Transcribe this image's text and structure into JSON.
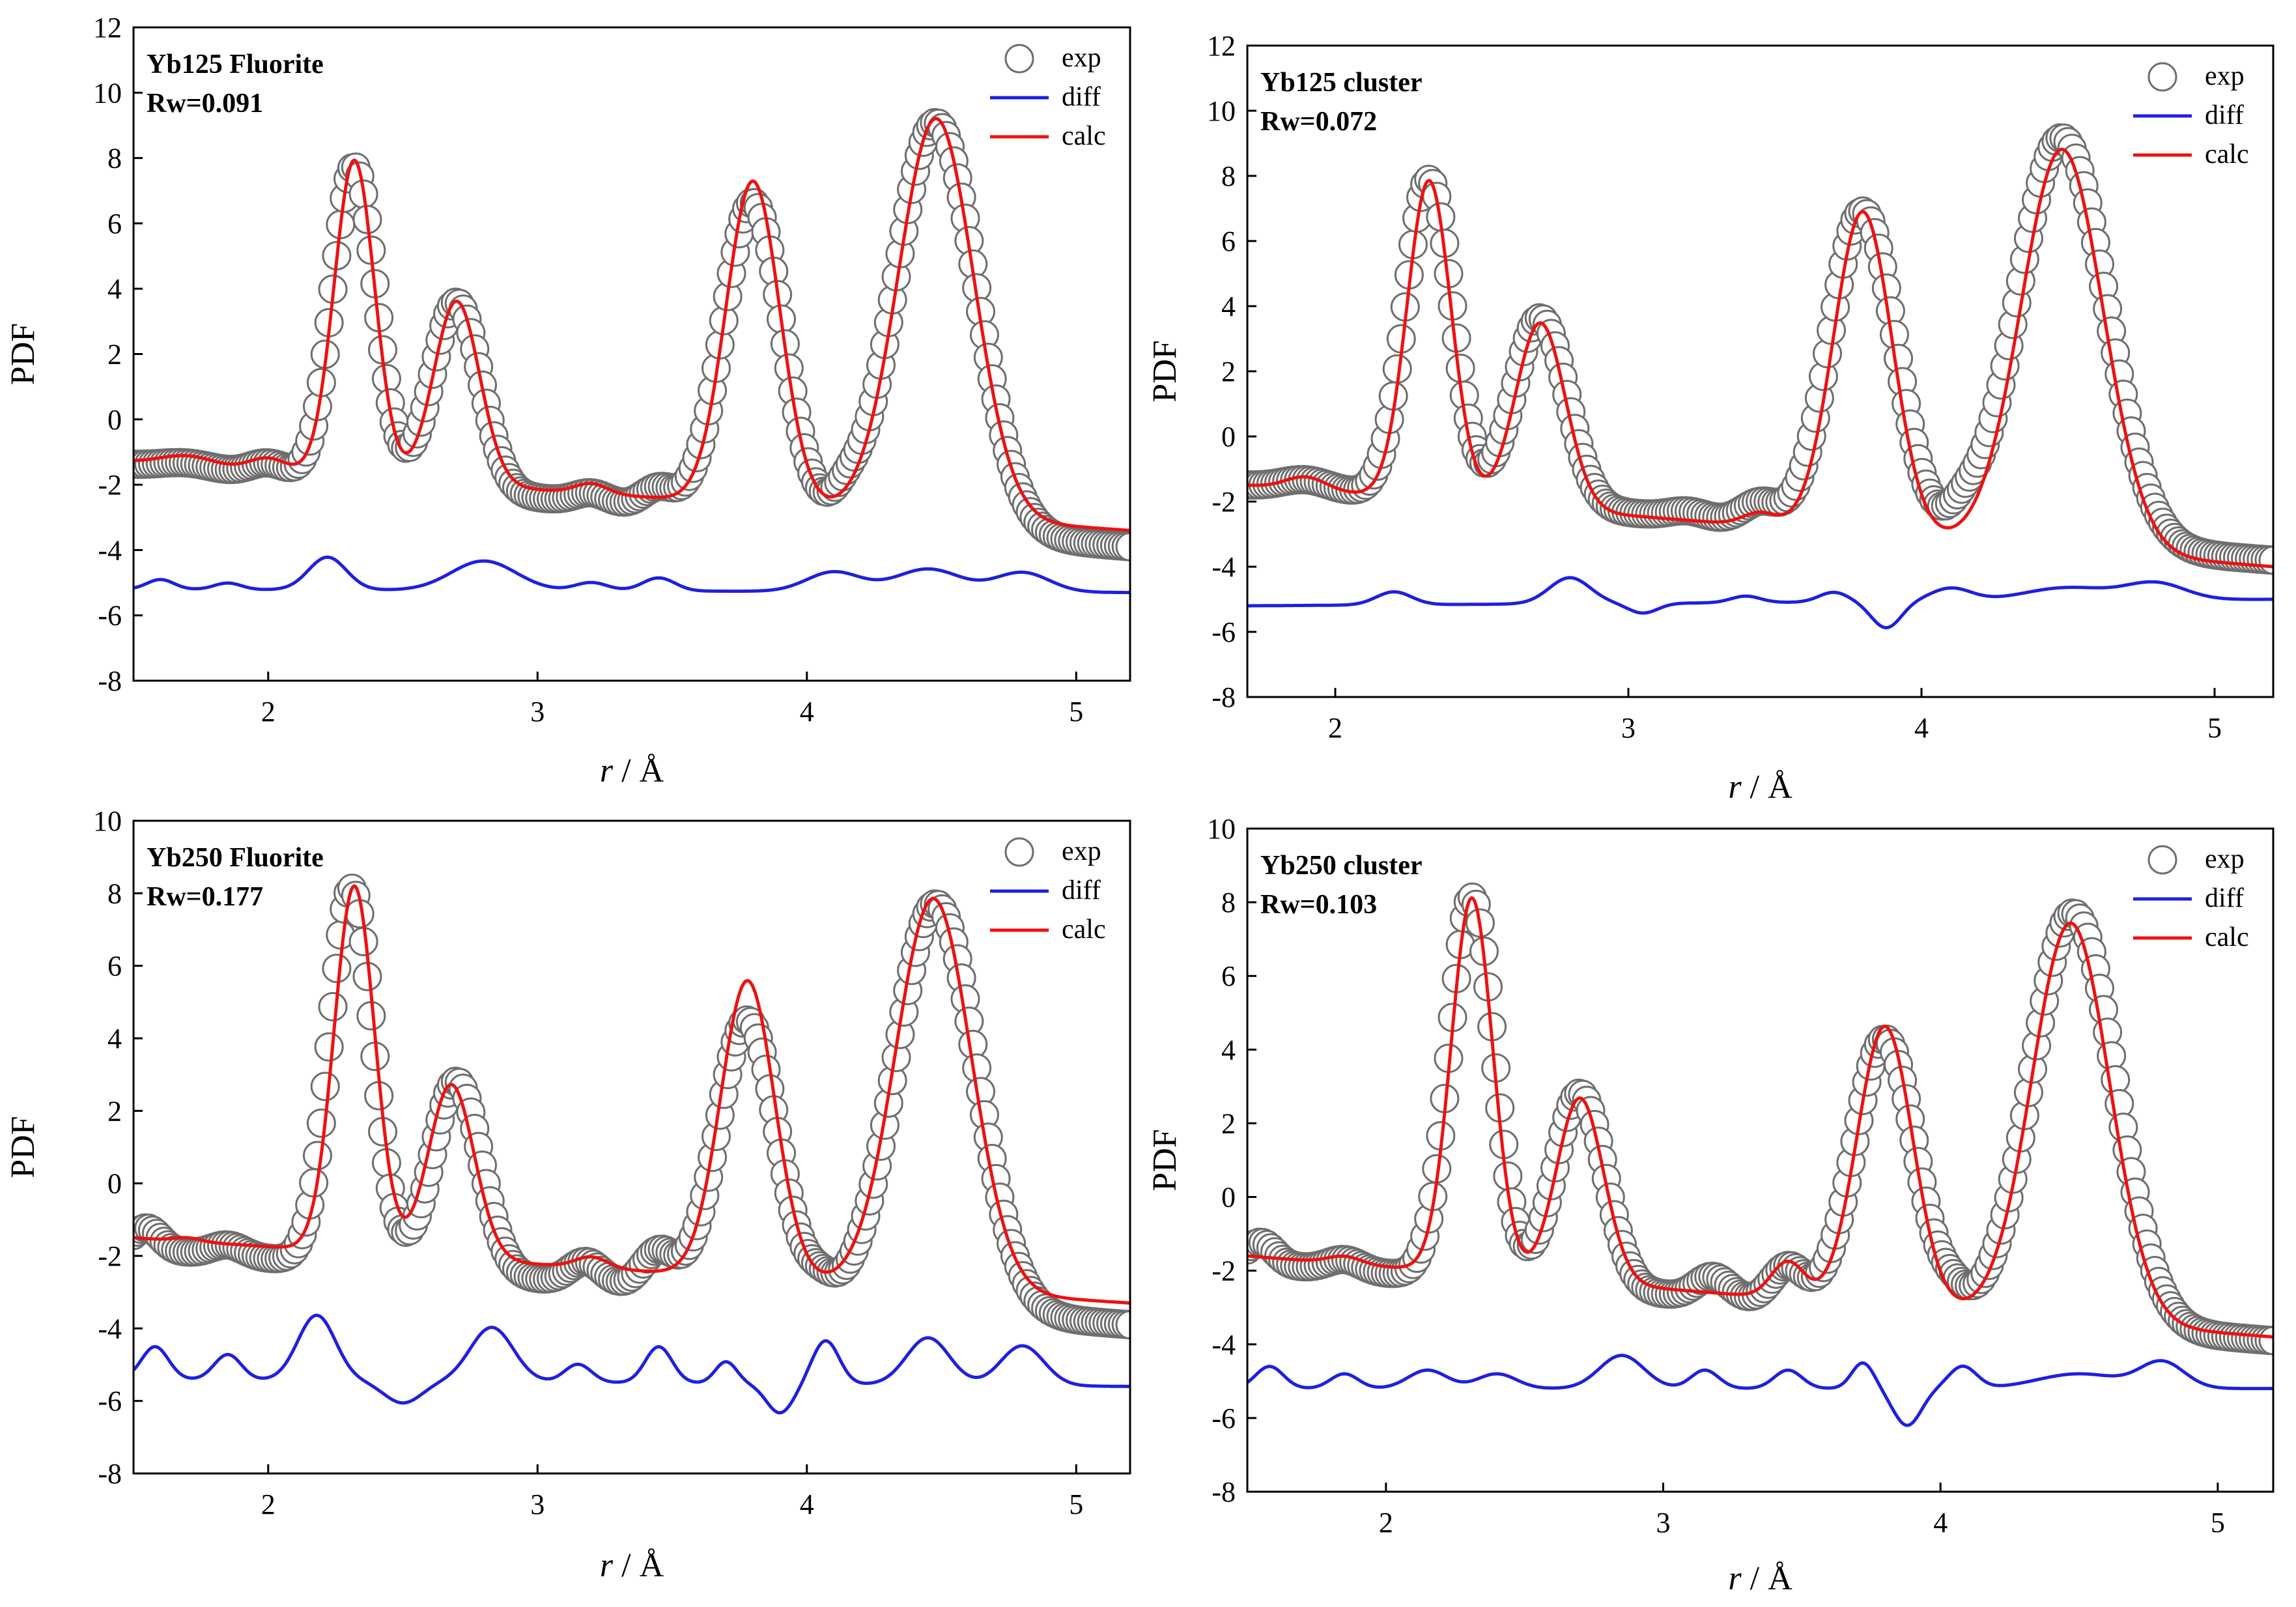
{
  "figure": {
    "description_free": true
  },
  "colors": {
    "exp": "#6e6e6e",
    "diff": "#1f1fe0",
    "calc": "#ee1111",
    "axis": "#000000"
  },
  "legend": {
    "exp": "exp",
    "diff": "diff",
    "calc": "calc"
  },
  "chart_data": [
    {
      "type": "line",
      "title": "Yb125 Fluorite",
      "rw": "Rw=0.091",
      "xlabel_italic": "r",
      "xlabel_rest": " / Å",
      "ylabel": "PDF",
      "xlim": [
        1.5,
        5.2
      ],
      "ylim": [
        -8,
        12
      ],
      "xticks": [
        "2",
        "3",
        "4",
        "5"
      ],
      "yticks": [
        "-8",
        "-6",
        "-4",
        "-2",
        "0",
        "2",
        "4",
        "6",
        "8",
        "10",
        "12"
      ],
      "series": [
        {
          "name": "exp",
          "base": -1.4,
          "end": -3.9,
          "peaks": [
            [
              1.7,
              0.2,
              0.1
            ],
            [
              2.0,
              0.4,
              0.07
            ],
            [
              2.32,
              9.7,
              0.08
            ],
            [
              2.7,
              5.8,
              0.09
            ],
            [
              3.2,
              0.3,
              0.06
            ],
            [
              3.45,
              0.6,
              0.06
            ],
            [
              3.8,
              9.6,
              0.11
            ],
            [
              4.15,
              0.5,
              0.05
            ],
            [
              4.48,
              12.5,
              0.15
            ]
          ]
        },
        {
          "name": "calc",
          "base": -1.3,
          "end": -3.4,
          "peaks": [
            [
              1.7,
              0.3,
              0.1
            ],
            [
              2.0,
              0.4,
              0.07
            ],
            [
              2.32,
              9.7,
              0.075
            ],
            [
              2.7,
              5.6,
              0.085
            ],
            [
              3.2,
              0.3,
              0.06
            ],
            [
              3.8,
              9.9,
              0.1
            ],
            [
              4.48,
              12.2,
              0.14
            ]
          ]
        },
        {
          "name": "diff",
          "base": -5.2,
          "end": -5.3,
          "peaks": [
            [
              1.6,
              0.3,
              0.05
            ],
            [
              1.85,
              0.2,
              0.05
            ],
            [
              2.22,
              1.0,
              0.07
            ],
            [
              2.8,
              0.9,
              0.12
            ],
            [
              3.2,
              0.25,
              0.06
            ],
            [
              3.45,
              0.4,
              0.06
            ],
            [
              4.1,
              0.6,
              0.1
            ],
            [
              4.45,
              0.7,
              0.12
            ],
            [
              4.8,
              0.6,
              0.1
            ]
          ]
        }
      ]
    },
    {
      "type": "line",
      "title": "Yb125 cluster",
      "rw": "Rw=0.072",
      "xlabel_italic": "r",
      "xlabel_rest": " / Å",
      "ylabel": "PDF",
      "xlim": [
        1.7,
        5.2
      ],
      "ylim": [
        -8,
        12
      ],
      "xticks": [
        "2",
        "3",
        "4",
        "5"
      ],
      "yticks": [
        "-8",
        "-6",
        "-4",
        "-2",
        "0",
        "2",
        "4",
        "6",
        "8",
        "10",
        "12"
      ],
      "series": [
        {
          "name": "exp",
          "base": -1.5,
          "end": -3.8,
          "peaks": [
            [
              1.9,
              0.3,
              0.08
            ],
            [
              2.32,
              9.8,
              0.08
            ],
            [
              2.7,
              5.8,
              0.09
            ],
            [
              3.2,
              0.2,
              0.06
            ],
            [
              3.45,
              0.6,
              0.06
            ],
            [
              3.8,
              9.8,
              0.11
            ],
            [
              4.15,
              0.5,
              0.05
            ],
            [
              4.48,
              12.5,
              0.15
            ]
          ]
        },
        {
          "name": "calc",
          "base": -1.5,
          "end": -4.0,
          "peaks": [
            [
              1.9,
              0.4,
              0.07
            ],
            [
              2.32,
              9.8,
              0.075
            ],
            [
              2.7,
              5.7,
              0.085
            ],
            [
              3.45,
              0.4,
              0.06
            ],
            [
              3.8,
              9.9,
              0.1
            ],
            [
              4.48,
              12.3,
              0.14
            ]
          ]
        },
        {
          "name": "diff",
          "base": -5.2,
          "end": -5.0,
          "peaks": [
            [
              2.2,
              0.4,
              0.06
            ],
            [
              2.8,
              0.8,
              0.07
            ],
            [
              3.05,
              -0.3,
              0.05
            ],
            [
              3.4,
              0.2,
              0.05
            ],
            [
              3.7,
              0.3,
              0.05
            ],
            [
              3.88,
              -0.8,
              0.05
            ],
            [
              4.1,
              0.4,
              0.07
            ],
            [
              4.5,
              0.4,
              0.15
            ],
            [
              4.8,
              0.5,
              0.1
            ]
          ]
        }
      ]
    },
    {
      "type": "line",
      "title": "Yb250 Fluorite",
      "rw": "Rw=0.177",
      "xlabel_italic": "r",
      "xlabel_rest": " / Å",
      "ylabel": "PDF",
      "xlim": [
        1.5,
        5.2
      ],
      "ylim": [
        -8,
        10
      ],
      "xticks": [
        "2",
        "3",
        "4",
        "5"
      ],
      "yticks": [
        "-8",
        "-6",
        "-4",
        "-2",
        "0",
        "2",
        "4",
        "6",
        "8",
        "10"
      ],
      "series": [
        {
          "name": "exp",
          "base": -1.8,
          "end": -3.9,
          "peaks": [
            [
              1.55,
              0.6,
              0.05
            ],
            [
              1.85,
              0.3,
              0.06
            ],
            [
              2.31,
              10.4,
              0.08
            ],
            [
              2.7,
              5.3,
              0.09
            ],
            [
              3.18,
              0.6,
              0.06
            ],
            [
              3.45,
              1.0,
              0.06
            ],
            [
              3.78,
              7.6,
              0.11
            ],
            [
              4.05,
              0.4,
              0.05
            ],
            [
              4.48,
              11.2,
              0.15
            ]
          ]
        },
        {
          "name": "calc",
          "base": -1.5,
          "end": -3.3,
          "peaks": [
            [
              1.7,
              0.1,
              0.05
            ],
            [
              2.32,
              10.1,
              0.075
            ],
            [
              2.68,
              4.8,
              0.085
            ],
            [
              3.2,
              0.3,
              0.06
            ],
            [
              3.78,
              8.2,
              0.1
            ],
            [
              4.47,
              10.8,
              0.14
            ]
          ]
        },
        {
          "name": "diff",
          "base": -5.4,
          "end": -5.6,
          "peaks": [
            [
              1.58,
              0.9,
              0.05
            ],
            [
              1.85,
              0.7,
              0.05
            ],
            [
              2.18,
              1.8,
              0.07
            ],
            [
              2.5,
              -0.6,
              0.07
            ],
            [
              2.83,
              1.5,
              0.08
            ],
            [
              3.15,
              0.5,
              0.05
            ],
            [
              3.45,
              1.0,
              0.05
            ],
            [
              3.7,
              0.6,
              0.04
            ],
            [
              3.9,
              -0.8,
              0.05
            ],
            [
              4.07,
              1.2,
              0.05
            ],
            [
              4.45,
              1.3,
              0.08
            ],
            [
              4.8,
              1.1,
              0.08
            ]
          ]
        }
      ]
    },
    {
      "type": "line",
      "title": "Yb250 cluster",
      "rw": "Rw=0.103",
      "xlabel_italic": "r",
      "xlabel_rest": " / Å",
      "ylabel": "PDF",
      "xlim": [
        1.5,
        5.2
      ],
      "ylim": [
        -8,
        10
      ],
      "xticks": [
        "2",
        "3",
        "4",
        "5"
      ],
      "yticks": [
        "-8",
        "-6",
        "-4",
        "-2",
        "0",
        "2",
        "4",
        "6",
        "8",
        "10"
      ],
      "series": [
        {
          "name": "exp",
          "base": -1.8,
          "end": -3.9,
          "peaks": [
            [
              1.55,
              0.6,
              0.05
            ],
            [
              1.85,
              0.3,
              0.06
            ],
            [
              2.31,
              10.4,
              0.08
            ],
            [
              2.7,
              5.3,
              0.09
            ],
            [
              3.18,
              0.6,
              0.06
            ],
            [
              3.45,
              1.0,
              0.06
            ],
            [
              3.8,
              7.4,
              0.11
            ],
            [
              4.05,
              0.4,
              0.05
            ],
            [
              4.48,
              11.2,
              0.15
            ]
          ]
        },
        {
          "name": "calc",
          "base": -1.6,
          "end": -3.8,
          "peaks": [
            [
              1.85,
              0.2,
              0.06
            ],
            [
              2.31,
              10.2,
              0.075
            ],
            [
              2.7,
              5.0,
              0.085
            ],
            [
              3.45,
              1.0,
              0.06
            ],
            [
              3.8,
              7.6,
              0.1
            ],
            [
              4.47,
              10.8,
              0.14
            ]
          ]
        },
        {
          "name": "diff",
          "base": -5.2,
          "end": -5.2,
          "peaks": [
            [
              1.58,
              0.6,
              0.05
            ],
            [
              1.85,
              0.4,
              0.05
            ],
            [
              2.15,
              0.5,
              0.07
            ],
            [
              2.4,
              0.4,
              0.07
            ],
            [
              2.85,
              0.9,
              0.08
            ],
            [
              3.15,
              0.5,
              0.05
            ],
            [
              3.45,
              0.5,
              0.05
            ],
            [
              3.72,
              0.7,
              0.04
            ],
            [
              3.88,
              -1.0,
              0.05
            ],
            [
              4.08,
              0.6,
              0.05
            ],
            [
              4.5,
              0.4,
              0.15
            ],
            [
              4.8,
              0.7,
              0.08
            ]
          ]
        }
      ]
    }
  ]
}
